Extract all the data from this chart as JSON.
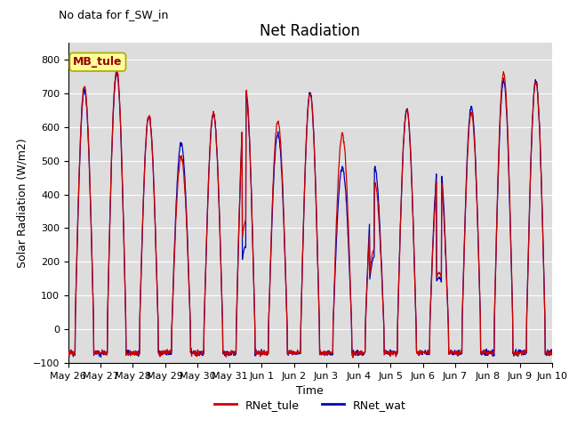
{
  "title": "Net Radiation",
  "subtitle": "No data for f_SW_in",
  "ylabel": "Solar Radiation (W/m2)",
  "xlabel": "Time",
  "ylim": [
    -100,
    850
  ],
  "yticks": [
    -100,
    0,
    100,
    200,
    300,
    400,
    500,
    600,
    700,
    800
  ],
  "xtick_labels": [
    "May 26",
    "May 27",
    "May 28",
    "May 29",
    "May 30",
    "May 31",
    "Jun 1",
    "Jun 2",
    "Jun 3",
    "Jun 4",
    "Jun 5",
    "Jun 6",
    "Jun 7",
    "Jun 8",
    "Jun 9",
    "Jun 10"
  ],
  "color_tule": "#cc0000",
  "color_wat": "#0000bb",
  "legend_entries": [
    "RNet_tule",
    "RNet_wat"
  ],
  "annotation_box": "MB_tule",
  "annotation_box_color": "#ffff99",
  "annotation_box_edge": "#aaaa00",
  "background_color": "#dddddd",
  "grid_color": "#ffffff",
  "title_fontsize": 12,
  "label_fontsize": 9,
  "tick_fontsize": 8,
  "subtitle_fontsize": 9
}
